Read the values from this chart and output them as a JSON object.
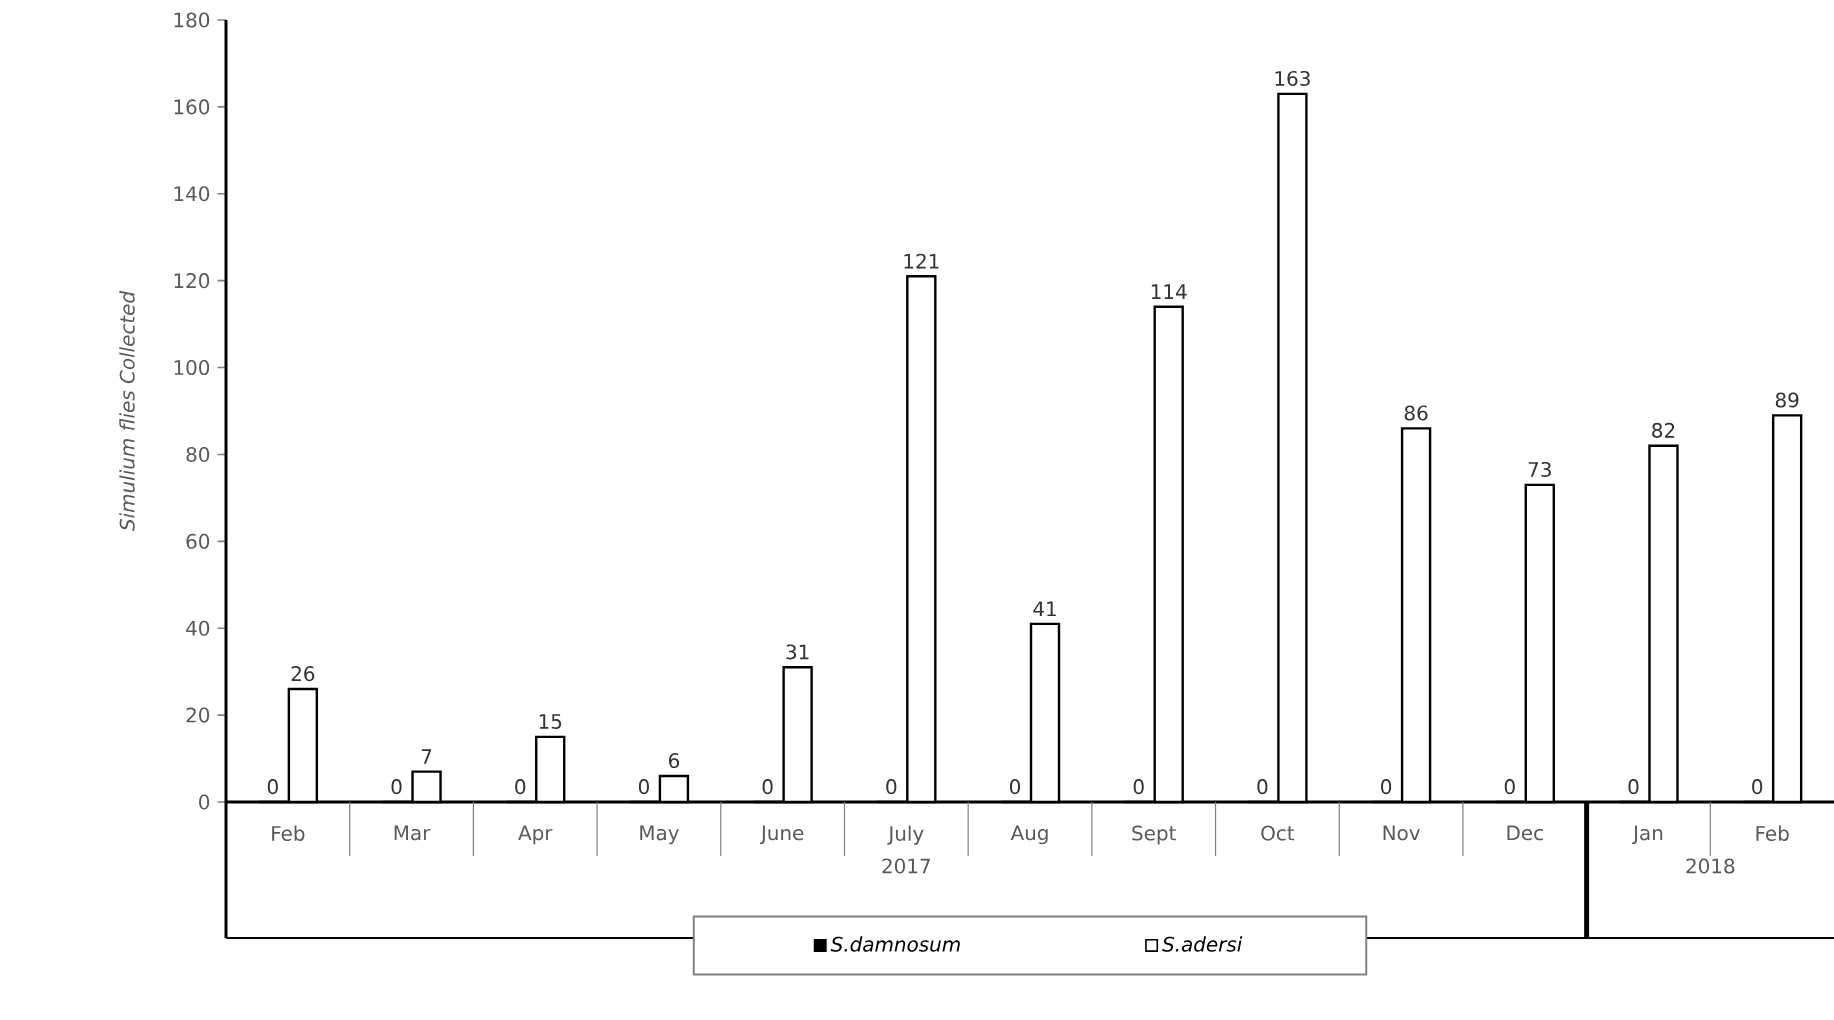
{
  "chart_data": {
    "type": "bar",
    "ylabel": "Simulium flies Collected",
    "categories": [
      "Feb",
      "Mar",
      "Apr",
      "May",
      "June",
      "July",
      "Aug",
      "Sept",
      "Oct",
      "Nov",
      "Dec",
      "Jan",
      "Feb"
    ],
    "series": [
      {
        "name": "S.damnosum",
        "color": "#000000",
        "values": [
          0,
          0,
          0,
          0,
          0,
          0,
          0,
          0,
          0,
          0,
          0,
          0,
          0
        ]
      },
      {
        "name": "S.adersi",
        "color": "#ffffff",
        "values": [
          26,
          7,
          15,
          6,
          31,
          121,
          41,
          114,
          163,
          86,
          73,
          82,
          89
        ]
      }
    ],
    "ylim": [
      0,
      180
    ],
    "yticks": [
      0,
      20,
      40,
      60,
      80,
      100,
      120,
      140,
      160,
      180
    ],
    "data_labels": true,
    "grid": false,
    "legend": "bottom",
    "annotations": [
      "2017",
      "2018"
    ]
  }
}
